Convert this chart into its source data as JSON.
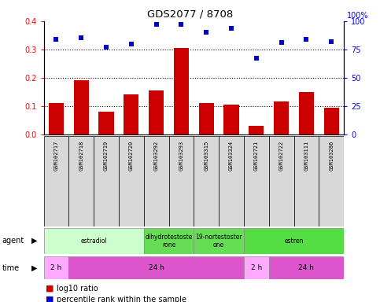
{
  "title": "GDS2077 / 8708",
  "samples": [
    "GSM102717",
    "GSM102718",
    "GSM102719",
    "GSM102720",
    "GSM103292",
    "GSM103293",
    "GSM103315",
    "GSM103324",
    "GSM102721",
    "GSM102722",
    "GSM103111",
    "GSM103286"
  ],
  "log10_ratio": [
    0.11,
    0.19,
    0.08,
    0.14,
    0.155,
    0.305,
    0.11,
    0.105,
    0.03,
    0.115,
    0.15,
    0.095
  ],
  "percentile_rank": [
    84,
    85,
    77,
    80,
    97,
    97,
    90,
    94,
    67,
    81,
    84,
    82
  ],
  "bar_color": "#cc0000",
  "dot_color": "#0000cc",
  "ylim_left": [
    0,
    0.4
  ],
  "ylim_right": [
    0,
    100
  ],
  "yticks_left": [
    0,
    0.1,
    0.2,
    0.3,
    0.4
  ],
  "yticks_right": [
    0,
    25,
    50,
    75,
    100
  ],
  "agent_groups": [
    {
      "label": "estradiol",
      "start": 0,
      "end": 4,
      "color": "#ccffcc"
    },
    {
      "label": "dihydrotestoste\nrone",
      "start": 4,
      "end": 6,
      "color": "#66dd55"
    },
    {
      "label": "19-nortestoster\none",
      "start": 6,
      "end": 8,
      "color": "#66dd55"
    },
    {
      "label": "estren",
      "start": 8,
      "end": 12,
      "color": "#55dd44"
    }
  ],
  "time_groups": [
    {
      "label": "2 h",
      "start": 0,
      "end": 1,
      "color": "#ffaaff"
    },
    {
      "label": "24 h",
      "start": 1,
      "end": 8,
      "color": "#dd55cc"
    },
    {
      "label": "2 h",
      "start": 8,
      "end": 9,
      "color": "#ffaaff"
    },
    {
      "label": "24 h",
      "start": 9,
      "end": 12,
      "color": "#dd55cc"
    }
  ]
}
